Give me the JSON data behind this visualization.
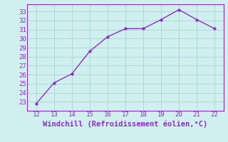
{
  "x": [
    12,
    13,
    14,
    15,
    16,
    17,
    18,
    19,
    20,
    21,
    22
  ],
  "y": [
    22.8,
    25.1,
    26.1,
    28.6,
    30.2,
    31.1,
    31.1,
    32.1,
    33.2,
    32.1,
    31.1
  ],
  "line_color": "#8B2FC9",
  "marker_color": "#8B2FC9",
  "bg_color": "#d0efef",
  "grid_color": "#b0d8d8",
  "xlabel": "Windchill (Refroidissement éolien,°C)",
  "xlabel_color": "#8B2FC9",
  "tick_color": "#8B2FC9",
  "spine_color": "#8B2FC9",
  "xlim": [
    11.5,
    22.5
  ],
  "ylim": [
    22.0,
    33.8
  ],
  "xticks": [
    12,
    13,
    14,
    15,
    16,
    17,
    18,
    19,
    20,
    21,
    22
  ],
  "yticks": [
    23,
    24,
    25,
    26,
    27,
    28,
    29,
    30,
    31,
    32,
    33
  ],
  "font_size": 6.5,
  "xlabel_font_size": 7.5
}
